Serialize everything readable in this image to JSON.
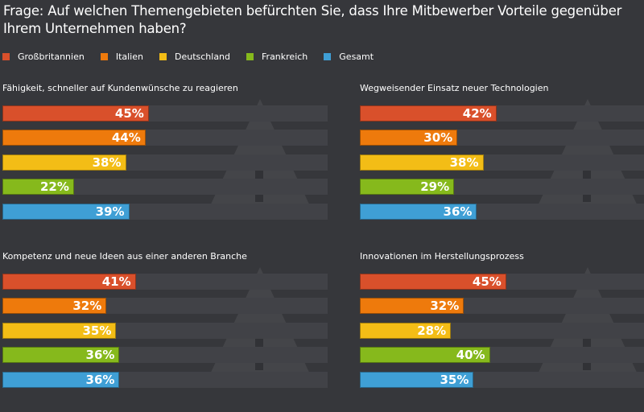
{
  "title": "Frage: Auf welchen Themengebieten befürchten Sie, dass Ihre Mitbewerber Vorteile gegenüber Ihrem Unternehmen haben?",
  "chart_data": [
    {
      "type": "bar",
      "orientation": "horizontal",
      "title": "Fähigkeit, schneller auf Kundenwünsche zu reagieren",
      "xlim": [
        0,
        100
      ],
      "categories": [
        "Großbritannien",
        "Italien",
        "Deutschland",
        "Frankreich",
        "Gesamt"
      ],
      "values": [
        45,
        44,
        38,
        22,
        39
      ],
      "labels": [
        "45%",
        "44%",
        "38%",
        "22%",
        "39%"
      ]
    },
    {
      "type": "bar",
      "orientation": "horizontal",
      "title": "Wegweisender Einsatz neuer Technologien",
      "xlim": [
        0,
        100
      ],
      "categories": [
        "Großbritannien",
        "Italien",
        "Deutschland",
        "Frankreich",
        "Gesamt"
      ],
      "values": [
        42,
        30,
        38,
        29,
        36
      ],
      "labels": [
        "42%",
        "30%",
        "38%",
        "29%",
        "36%"
      ]
    },
    {
      "type": "bar",
      "orientation": "horizontal",
      "title": "Kompetenz und neue Ideen aus einer anderen Branche",
      "xlim": [
        0,
        100
      ],
      "categories": [
        "Großbritannien",
        "Italien",
        "Deutschland",
        "Frankreich",
        "Gesamt"
      ],
      "values": [
        41,
        32,
        35,
        36,
        36
      ],
      "labels": [
        "41%",
        "32%",
        "35%",
        "36%",
        "36%"
      ]
    },
    {
      "type": "bar",
      "orientation": "horizontal",
      "title": "Innovationen im Herstellungsprozess",
      "xlim": [
        0,
        100
      ],
      "categories": [
        "Großbritannien",
        "Italien",
        "Deutschland",
        "Frankreich",
        "Gesamt"
      ],
      "values": [
        45,
        32,
        28,
        40,
        35
      ],
      "labels": [
        "45%",
        "32%",
        "28%",
        "40%",
        "35%"
      ]
    }
  ],
  "legend": [
    {
      "label": "Großbritannien",
      "color": "#d9502b"
    },
    {
      "label": "Italien",
      "color": "#ee7a0c"
    },
    {
      "label": "Deutschland",
      "color": "#f3bd16"
    },
    {
      "label": "Frankreich",
      "color": "#86b91c"
    },
    {
      "label": "Gesamt",
      "color": "#3f9fd5"
    }
  ]
}
